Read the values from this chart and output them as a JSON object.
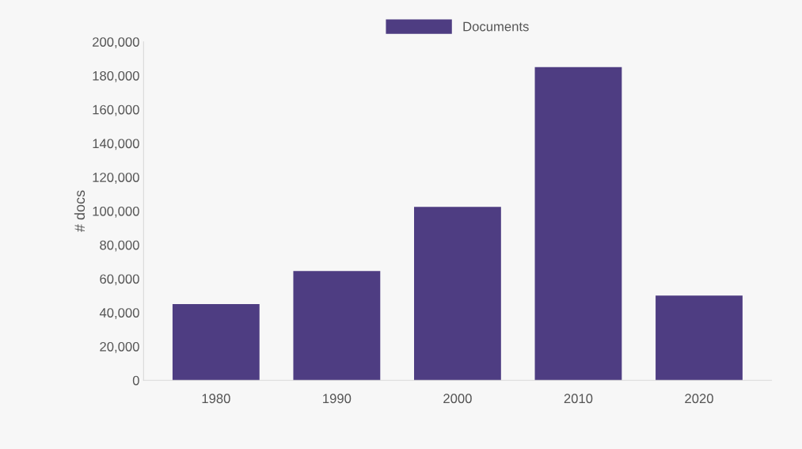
{
  "chart_data": {
    "type": "bar",
    "ylabel": "# docs",
    "categories": [
      "1980",
      "1990",
      "2000",
      "2010",
      "2020"
    ],
    "series": [
      {
        "name": "Documents",
        "color": "#4e3d82",
        "values": [
          45000,
          64500,
          102500,
          185000,
          50000
        ]
      }
    ],
    "ylim": [
      0,
      200000
    ],
    "yticks": [
      {
        "value": 0,
        "label": "0"
      },
      {
        "value": 20000,
        "label": "20,000"
      },
      {
        "value": 40000,
        "label": "40,000"
      },
      {
        "value": 60000,
        "label": "60,000"
      },
      {
        "value": 80000,
        "label": "80,000"
      },
      {
        "value": 100000,
        "label": "100,000"
      },
      {
        "value": 120000,
        "label": "120,000"
      },
      {
        "value": 140000,
        "label": "140,000"
      },
      {
        "value": 160000,
        "label": "160,000"
      },
      {
        "value": 180000,
        "label": "180,000"
      },
      {
        "value": 200000,
        "label": "200,000"
      }
    ],
    "grid": false,
    "legend": "top"
  }
}
